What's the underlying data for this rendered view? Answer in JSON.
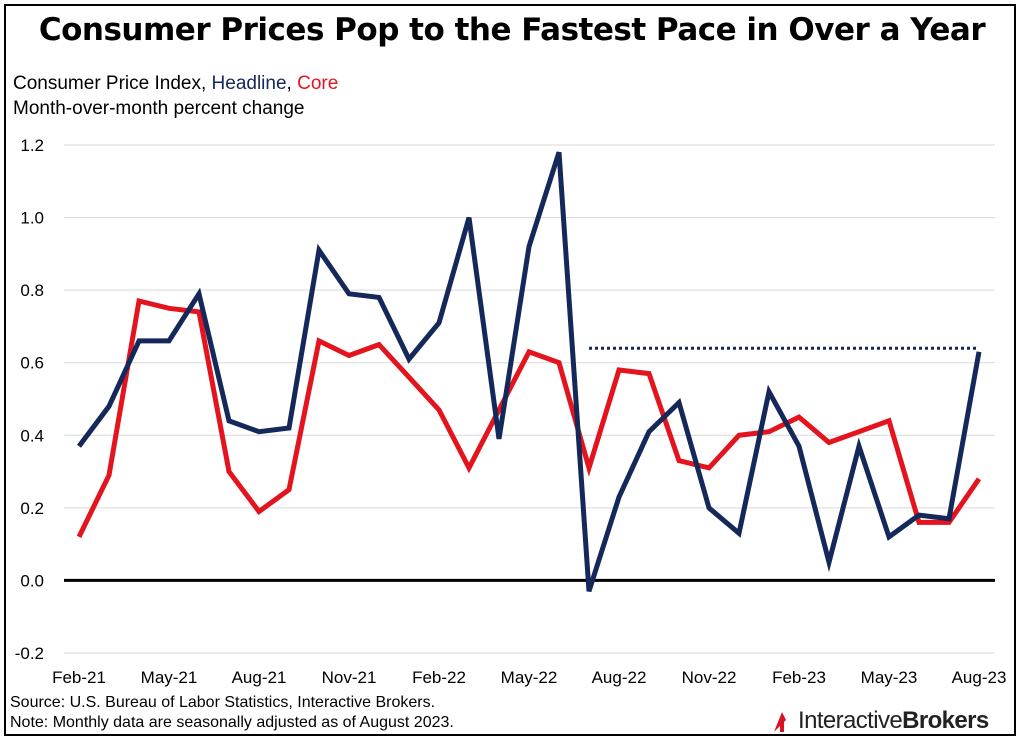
{
  "title": "Consumer Prices Pop to the Fastest Pace in Over a Year",
  "subtitle": {
    "prefix": "Consumer Price Index, ",
    "headline": "Headline",
    "sep": ", ",
    "core": "Core",
    "line2": "Month-over-month percent change"
  },
  "footer": {
    "source": "Source: U.S. Bureau of Labor Statistics, Interactive Brokers.",
    "note": "Note: Monthly data are seasonally adjusted as of August 2023."
  },
  "logo": {
    "part1": "Interactive",
    "part2": "Brokers"
  },
  "colors": {
    "headline": "#14285a",
    "core": "#e3141e",
    "grid": "#d9d9d9",
    "zero": "#000000"
  },
  "chart_data": {
    "type": "line",
    "x": [
      "Feb-21",
      "Mar-21",
      "Apr-21",
      "May-21",
      "Jun-21",
      "Jul-21",
      "Aug-21",
      "Sep-21",
      "Oct-21",
      "Nov-21",
      "Dec-21",
      "Jan-22",
      "Feb-22",
      "Mar-22",
      "Apr-22",
      "May-22",
      "Jun-22",
      "Jul-22",
      "Aug-22",
      "Sep-22",
      "Oct-22",
      "Nov-22",
      "Dec-22",
      "Jan-23",
      "Feb-23",
      "Mar-23",
      "Apr-23",
      "May-23",
      "Jun-23",
      "Jul-23",
      "Aug-23"
    ],
    "xticks": [
      "Feb-21",
      "May-21",
      "Aug-21",
      "Nov-21",
      "Feb-22",
      "May-22",
      "Aug-22",
      "Nov-22",
      "Feb-23",
      "May-23",
      "Aug-23"
    ],
    "yticks": [
      "1.2",
      "1.0",
      "0.8",
      "0.6",
      "0.4",
      "0.2",
      "0.0",
      "-0.2"
    ],
    "ylim": [
      -0.2,
      1.2
    ],
    "grid": true,
    "series": [
      {
        "name": "Headline",
        "color": "#14285a",
        "values": [
          0.37,
          0.48,
          0.66,
          0.66,
          0.79,
          0.44,
          0.41,
          0.42,
          0.91,
          0.79,
          0.78,
          0.61,
          0.71,
          1.0,
          0.39,
          0.92,
          1.18,
          -0.03,
          0.23,
          0.41,
          0.49,
          0.2,
          0.13,
          0.52,
          0.37,
          0.05,
          0.37,
          0.12,
          0.18,
          0.17,
          0.63
        ]
      },
      {
        "name": "Core",
        "color": "#e3141e",
        "values": [
          0.12,
          0.29,
          0.77,
          0.75,
          0.74,
          0.3,
          0.19,
          0.25,
          0.66,
          0.62,
          0.65,
          0.56,
          0.47,
          0.31,
          0.47,
          0.63,
          0.6,
          0.31,
          0.58,
          0.57,
          0.33,
          0.31,
          0.4,
          0.41,
          0.45,
          0.38,
          0.41,
          0.44,
          0.16,
          0.16,
          0.28
        ]
      }
    ],
    "reference_line": {
      "style": "dotted",
      "color": "#14285a",
      "value": 0.64,
      "from": "Jul-22",
      "to": "Aug-23"
    }
  }
}
